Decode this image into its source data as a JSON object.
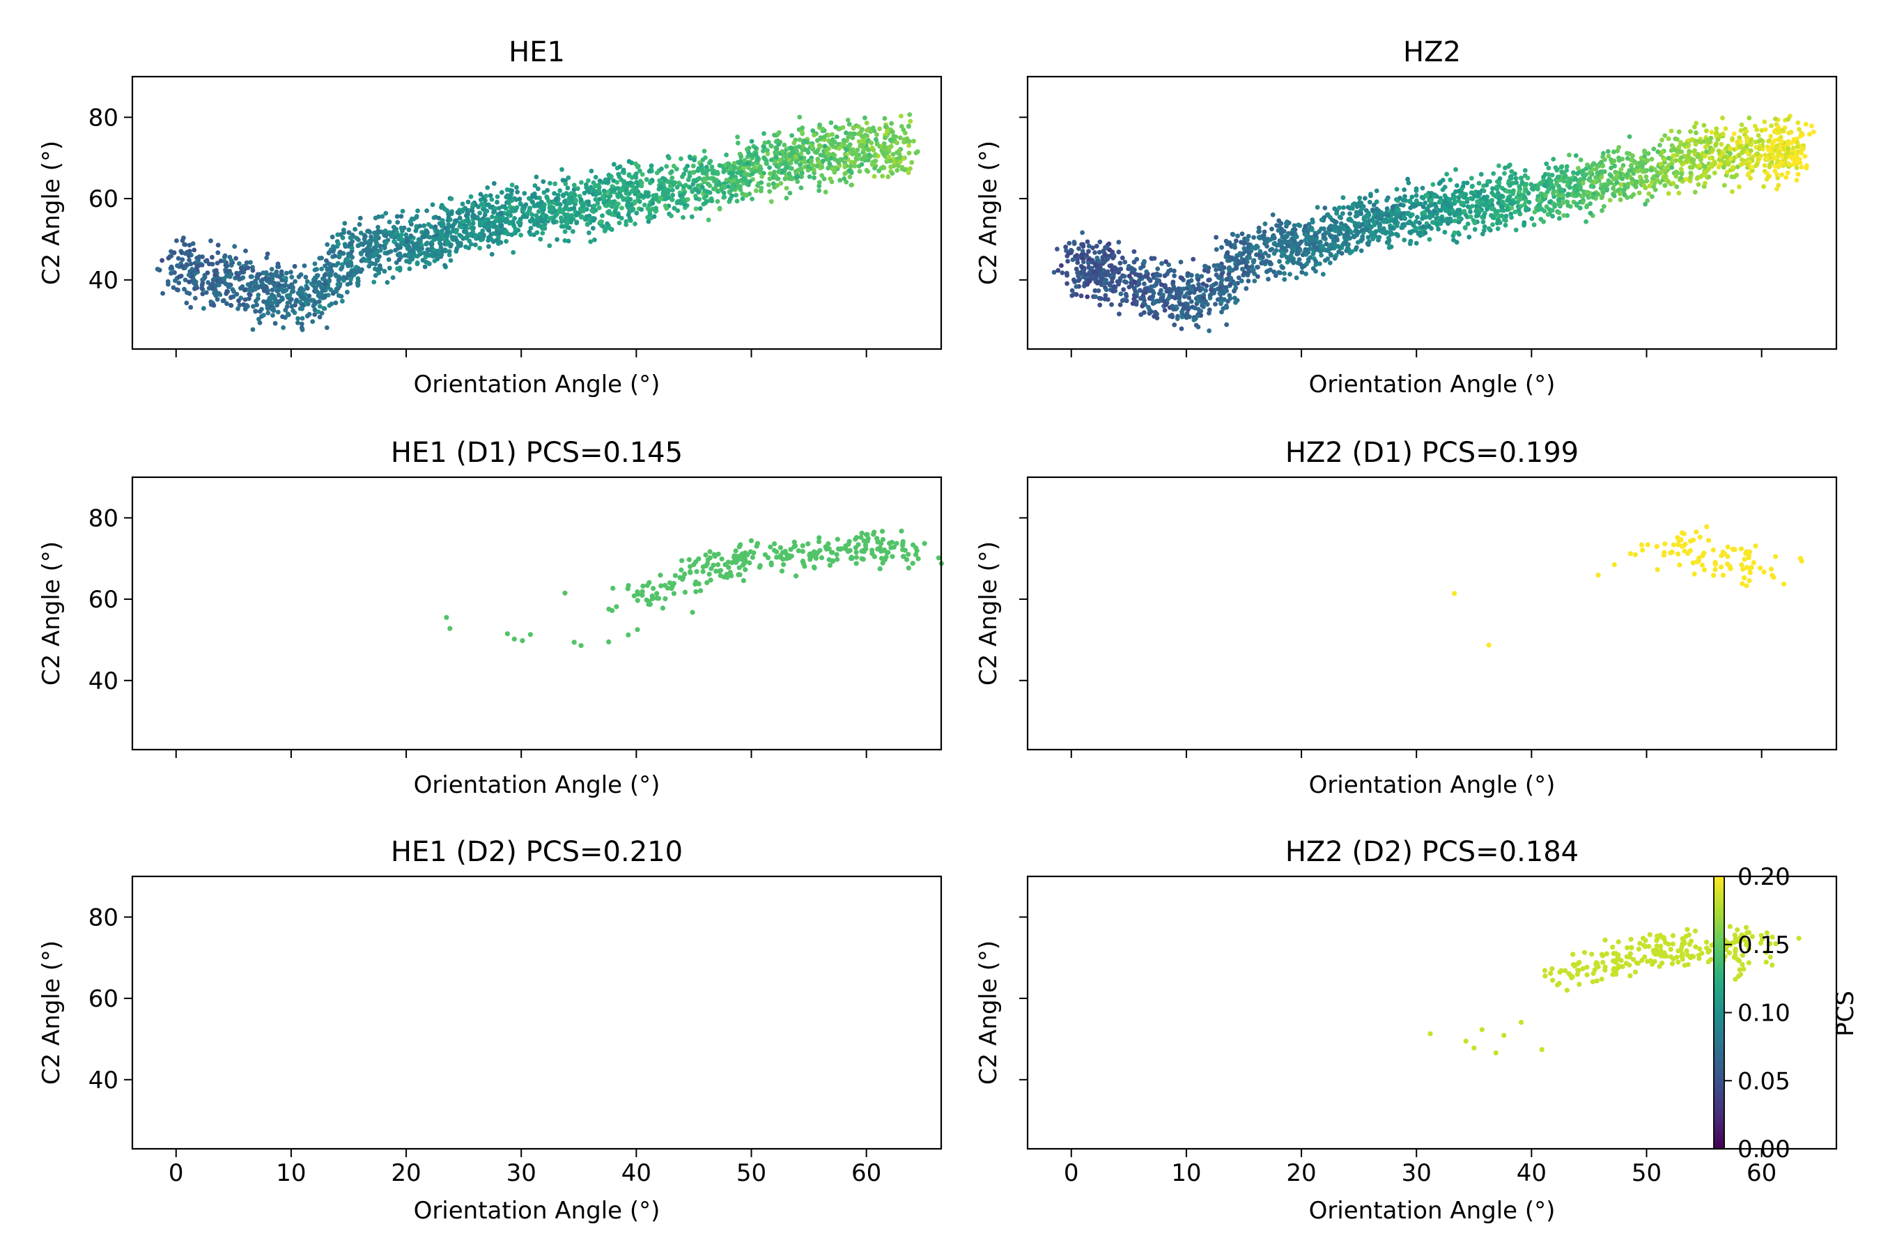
{
  "chart_data": {
    "type": "scatter",
    "colorbar": {
      "label": "PCS",
      "min": 0.0,
      "max": 0.2,
      "ticks": [
        "0.00",
        "0.05",
        "0.10",
        "0.15",
        "0.20"
      ],
      "colormap": "viridis"
    },
    "panels": [
      {
        "id": "he1-all",
        "title": "HE1",
        "xlabel": "Orientation Angle (°)",
        "ylabel": "C2 Angle (°)",
        "xlim": [
          -3.8,
          66.5
        ],
        "ylim": [
          23,
          90
        ],
        "x_ticks": [
          0,
          10,
          20,
          30,
          40,
          50,
          60
        ],
        "x_tick_labels_shown": false,
        "y_ticks": [
          40,
          60,
          80
        ],
        "y_tick_labels_shown": true,
        "series": [
          {
            "points": "dense cloud",
            "x": [
              0,
              2,
              4,
              6,
              8,
              10,
              12,
              14,
              16,
              18,
              20,
              22,
              24,
              26,
              28,
              30,
              32,
              34,
              36,
              38,
              40,
              42,
              44,
              46,
              48,
              50,
              52,
              54,
              56,
              58,
              60,
              62,
              63
            ],
            "y": [
              44,
              42,
              41,
              39,
              37,
              36,
              35,
              44,
              47,
              48,
              49,
              50,
              52,
              54,
              55,
              56,
              57,
              58,
              59,
              60,
              61,
              62,
              63,
              64,
              66,
              67,
              69,
              70,
              71,
              71,
              72,
              72,
              73
            ],
            "pcs_range": [
              0.06,
              0.16
            ]
          }
        ]
      },
      {
        "id": "hz2-all",
        "title": "HZ2",
        "xlabel": "Orientation Angle (°)",
        "ylabel": "C2 Angle (°)",
        "xlim": [
          -3.8,
          66.5
        ],
        "ylim": [
          23,
          90
        ],
        "x_ticks": [
          0,
          10,
          20,
          30,
          40,
          50,
          60
        ],
        "x_tick_labels_shown": false,
        "y_ticks": [
          40,
          60,
          80
        ],
        "y_tick_labels_shown": false,
        "series": [
          {
            "points": "dense cloud",
            "x": [
              0,
              2,
              4,
              6,
              8,
              10,
              12,
              14,
              16,
              18,
              20,
              22,
              24,
              26,
              28,
              30,
              32,
              34,
              36,
              38,
              40,
              42,
              44,
              46,
              48,
              50,
              52,
              54,
              56,
              58,
              60,
              62,
              63
            ],
            "y": [
              44,
              42,
              41,
              39,
              37,
              36,
              35,
              44,
              47,
              48,
              49,
              50,
              52,
              54,
              55,
              56,
              57,
              58,
              59,
              60,
              61,
              62,
              63,
              64,
              66,
              67,
              69,
              70,
              71,
              71,
              72,
              72,
              73
            ],
            "pcs_range": [
              0.05,
              0.2
            ]
          }
        ]
      },
      {
        "id": "he1-d1",
        "title": "HE1 (D1) PCS=0.145",
        "xlabel": "Orientation Angle (°)",
        "ylabel": "C2 Angle (°)",
        "xlim": [
          -3.8,
          66.5
        ],
        "ylim": [
          23,
          90
        ],
        "x_ticks": [
          0,
          10,
          20,
          30,
          40,
          50,
          60
        ],
        "x_tick_labels_shown": false,
        "y_ticks": [
          40,
          60,
          80
        ],
        "y_tick_labels_shown": true,
        "pcs": 0.145,
        "series": [
          {
            "points": "cluster",
            "x": [
              23.5,
              23.8,
              28.8,
              29.4,
              30.1,
              30.8,
              33.8,
              34.6,
              35.2,
              37.6,
              37.9,
              39.3,
              40.1,
              41.4,
              42.5,
              44.2,
              45.8,
              47.1,
              48.5,
              50.2,
              52.0,
              53.5,
              55.1,
              56.6,
              58.2,
              59.6,
              61.0,
              62.4,
              63.2
            ],
            "y": [
              55.5,
              52.8,
              51.5,
              50.2,
              49.8,
              51.3,
              61.5,
              49.4,
              48.6,
              49.5,
              57.2,
              51.2,
              52.5,
              60.1,
              63.4,
              66.2,
              66.8,
              68.5,
              70.2,
              71.4,
              72.0,
              70.6,
              69.8,
              72.5,
              73.1,
              71.8,
              74.2,
              72.8,
              70.5
            ],
            "pcs": 0.145
          }
        ]
      },
      {
        "id": "hz2-d1",
        "title": "HZ2 (D1) PCS=0.199",
        "xlabel": "Orientation Angle (°)",
        "ylabel": "C2 Angle (°)",
        "xlim": [
          -3.8,
          66.5
        ],
        "ylim": [
          23,
          90
        ],
        "x_ticks": [
          0,
          10,
          20,
          30,
          40,
          50,
          60
        ],
        "x_tick_labels_shown": false,
        "y_ticks": [
          40,
          60,
          80
        ],
        "y_tick_labels_shown": false,
        "pcs": 0.199,
        "series": [
          {
            "points": "cluster",
            "x": [
              33.3,
              36.3,
              45.8,
              47.2,
              48.6,
              50.1,
              51.5,
              53.0,
              54.4,
              55.8,
              57.3,
              58.7,
              60.2
            ],
            "y": [
              61.4,
              48.7,
              65.9,
              68.5,
              71.2,
              73.4,
              70.8,
              74.6,
              69.2,
              72.1,
              67.5,
              71.7,
              66.7
            ],
            "pcs": 0.199
          }
        ]
      },
      {
        "id": "he1-d2",
        "title": "HE1 (D2) PCS=0.210",
        "xlabel": "Orientation Angle (°)",
        "ylabel": "C2 Angle (°)",
        "xlim": [
          -3.8,
          66.5
        ],
        "ylim": [
          23,
          90
        ],
        "x_ticks": [
          0,
          10,
          20,
          30,
          40,
          50,
          60
        ],
        "x_tick_labels_shown": true,
        "y_ticks": [
          40,
          60,
          80
        ],
        "y_tick_labels_shown": true,
        "pcs": 0.21,
        "series": []
      },
      {
        "id": "hz2-d2",
        "title": "HZ2 (D2) PCS=0.184",
        "xlabel": "Orientation Angle (°)",
        "ylabel": "C2 Angle (°)",
        "xlim": [
          -3.8,
          66.5
        ],
        "ylim": [
          23,
          90
        ],
        "x_ticks": [
          0,
          10,
          20,
          30,
          40,
          50,
          60
        ],
        "x_tick_labels_shown": true,
        "y_ticks": [
          40,
          60,
          80
        ],
        "y_tick_labels_shown": false,
        "pcs": 0.184,
        "series": [
          {
            "points": "cluster",
            "x": [
              31.2,
              34.3,
              35.0,
              35.7,
              36.9,
              37.6,
              39.1,
              40.9,
              42.4,
              44.0,
              45.6,
              47.1,
              48.6,
              50.2,
              51.7,
              53.3,
              54.8,
              56.4,
              57.9,
              59.2
            ],
            "y": [
              51.3,
              49.5,
              47.8,
              52.3,
              46.6,
              50.9,
              54.1,
              47.4,
              63.7,
              65.9,
              68.5,
              69.2,
              71.0,
              72.8,
              70.4,
              73.6,
              71.1,
              73.3,
              69.6,
              75.2
            ],
            "pcs": 0.184
          }
        ]
      }
    ]
  }
}
